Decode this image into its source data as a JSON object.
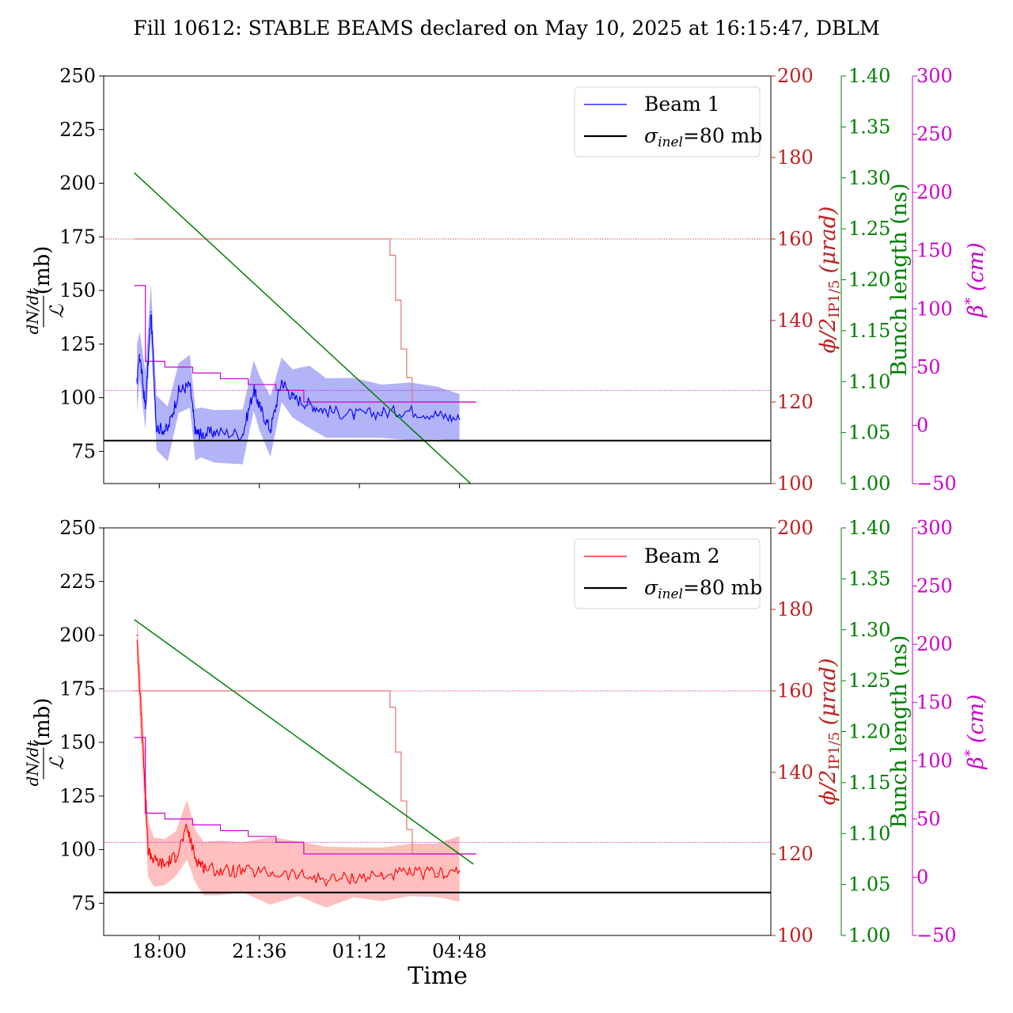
{
  "title": "Fill 10612: STABLE BEAMS declared on May 10, 2025 at 16:15:47, DBLM",
  "xlabel": "Time",
  "xticks": [
    "18:00",
    "21:36",
    "01:12",
    "04:48"
  ],
  "colors": {
    "beam1": "#0000ff",
    "beam2": "#ff0000",
    "crossing": "#c02020",
    "bunch": "#008000",
    "beta": "#cc00cc",
    "ref": "#000000"
  },
  "axes": {
    "left": {
      "label_num": "dN/dt",
      "label_den": "ℒ",
      "label_unit": "(mb)",
      "range": [
        60,
        250
      ],
      "ticks": [
        "75",
        "100",
        "125",
        "150",
        "175",
        "200",
        "225",
        "250"
      ]
    },
    "crossing": {
      "label_main": "ϕ/2",
      "label_sub": "IP1/5",
      "label_unit": "(μrad)",
      "range": [
        100,
        200
      ],
      "ticks": [
        "100",
        "120",
        "140",
        "160",
        "180",
        "200"
      ]
    },
    "bunch": {
      "label": "Bunch length (ns)",
      "range": [
        1.0,
        1.4
      ],
      "ticks": [
        "1.00",
        "1.05",
        "1.10",
        "1.15",
        "1.20",
        "1.25",
        "1.30",
        "1.35",
        "1.40"
      ]
    },
    "beta": {
      "label_main": "β",
      "label_sup": "*",
      "label_unit": "(cm)",
      "range": [
        -50,
        300
      ],
      "ticks": [
        "−50",
        "0",
        "50",
        "100",
        "150",
        "200",
        "250",
        "300"
      ]
    }
  },
  "chart_data": [
    {
      "type": "line",
      "panel": "top",
      "legend": [
        "Beam 1",
        "σinel=80 mb"
      ],
      "xlim_hours": [
        16.0,
        40.0
      ],
      "x_hours_ticks": [
        18.0,
        21.6,
        25.2,
        28.8
      ],
      "series": [
        {
          "name": "Beam 1",
          "axis": "left",
          "x": [
            17.2,
            17.3,
            17.5,
            17.7,
            17.9,
            18.3,
            18.7,
            19.1,
            19.3,
            19.5,
            20.0,
            21.0,
            21.4,
            21.6,
            22.0,
            22.4,
            22.8,
            23.4,
            24.0,
            25.0,
            26.0,
            27.0,
            28.0,
            28.8
          ],
          "y": [
            108,
            120,
            95,
            140,
            86,
            85,
            103,
            106,
            84,
            83,
            84,
            83,
            104,
            96,
            85,
            108,
            100,
            97,
            94,
            92,
            93,
            94,
            92,
            90
          ]
        },
        {
          "name": "σinel=80 mb",
          "axis": "left",
          "x": [
            16.0,
            40.0
          ],
          "y": [
            80,
            80
          ]
        },
        {
          "name": "Bunch length",
          "axis": "bunch",
          "x": [
            17.1,
            29.2
          ],
          "y": [
            1.305,
            1.0
          ]
        },
        {
          "name": "Crossing angle",
          "axis": "crossing",
          "x": [
            17.1,
            26.2,
            26.3,
            26.5,
            26.7,
            26.9,
            27.1,
            29.4
          ],
          "y": [
            160,
            160,
            156,
            145,
            133,
            126,
            120,
            120
          ]
        },
        {
          "name": "β*",
          "axis": "beta",
          "x": [
            17.1,
            17.5,
            18.2,
            19.2,
            20.2,
            21.2,
            22.2,
            23.2,
            29.4
          ],
          "y": [
            120,
            55,
            50,
            45,
            40,
            35,
            30,
            20,
            20
          ]
        }
      ]
    },
    {
      "type": "line",
      "panel": "bottom",
      "legend": [
        "Beam 2",
        "σinel=80 mb"
      ],
      "xlim_hours": [
        16.0,
        40.0
      ],
      "x_hours_ticks": [
        18.0,
        21.6,
        25.2,
        28.8
      ],
      "series": [
        {
          "name": "Beam 2",
          "axis": "left",
          "x": [
            17.2,
            17.4,
            17.6,
            17.8,
            18.2,
            18.6,
            19.0,
            19.3,
            19.6,
            20.2,
            21.0,
            22.0,
            23.0,
            24.0,
            25.0,
            26.0,
            27.0,
            28.0,
            28.8
          ],
          "y": [
            200,
            150,
            100,
            95,
            93,
            97,
            110,
            96,
            92,
            90,
            90,
            89,
            88,
            86,
            87,
            88,
            89,
            89,
            90
          ]
        },
        {
          "name": "σinel=80 mb",
          "axis": "left",
          "x": [
            16.0,
            40.0
          ],
          "y": [
            80,
            80
          ]
        },
        {
          "name": "Bunch length",
          "axis": "bunch",
          "x": [
            17.1,
            29.3
          ],
          "y": [
            1.31,
            1.07
          ]
        },
        {
          "name": "Crossing angle",
          "axis": "crossing",
          "x": [
            17.1,
            26.2,
            26.3,
            26.5,
            26.7,
            26.9,
            27.1,
            29.4
          ],
          "y": [
            160,
            160,
            156,
            145,
            133,
            126,
            120,
            120
          ]
        },
        {
          "name": "β*",
          "axis": "beta",
          "x": [
            17.1,
            17.5,
            18.2,
            19.2,
            20.2,
            21.2,
            22.2,
            23.2,
            29.4
          ],
          "y": [
            120,
            55,
            50,
            45,
            40,
            35,
            30,
            20,
            20
          ]
        }
      ]
    }
  ]
}
